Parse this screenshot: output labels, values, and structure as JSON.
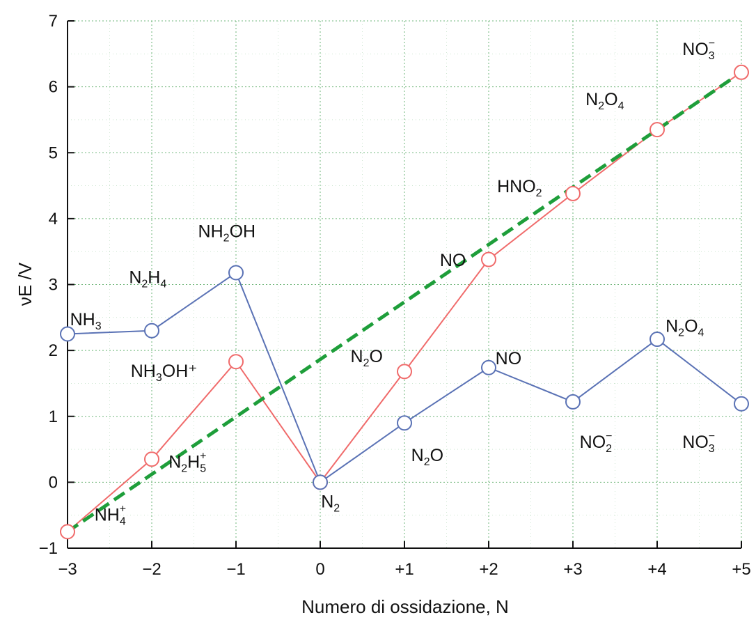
{
  "chart_data": {
    "type": "line",
    "xlabel": "Numero di ossidazione, N",
    "ylabel": "νE /V",
    "xlim": [
      -3,
      5
    ],
    "ylim": [
      -1,
      7
    ],
    "x_ticks": [
      -3,
      -2,
      -1,
      0,
      1,
      2,
      3,
      4,
      5
    ],
    "x_tick_labels": [
      "−3",
      "−2",
      "−1",
      "0",
      "+1",
      "+2",
      "+3",
      "+4",
      "+5"
    ],
    "y_ticks": [
      -1,
      0,
      1,
      2,
      3,
      4,
      5,
      6,
      7
    ],
    "y_tick_labels": [
      "−1",
      "0",
      "1",
      "2",
      "3",
      "4",
      "5",
      "6",
      "7"
    ],
    "grid": true,
    "colors": {
      "red_series": "#f06b6b",
      "blue_series": "#5a72b5",
      "dashed_line": "#1e9e3a",
      "grid": "#5fae6a"
    },
    "series": [
      {
        "color": "#f06b6b",
        "marker": "open-circle",
        "points": [
          {
            "x": -3,
            "y": -0.75
          },
          {
            "x": -2,
            "y": 0.35
          },
          {
            "x": -1,
            "y": 1.83
          },
          {
            "x": 0,
            "y": 0.0
          },
          {
            "x": 1,
            "y": 1.68
          },
          {
            "x": 2,
            "y": 3.38
          },
          {
            "x": 3,
            "y": 4.38
          },
          {
            "x": 4,
            "y": 5.35
          },
          {
            "x": 5,
            "y": 6.22
          }
        ]
      },
      {
        "color": "#5a72b5",
        "marker": "open-circle",
        "points": [
          {
            "x": -3,
            "y": 2.25
          },
          {
            "x": -2,
            "y": 2.3
          },
          {
            "x": -1,
            "y": 3.18
          },
          {
            "x": 0,
            "y": 0.0
          },
          {
            "x": 1,
            "y": 0.9
          },
          {
            "x": 2,
            "y": 1.74
          },
          {
            "x": 3,
            "y": 1.22
          },
          {
            "x": 4,
            "y": 2.17
          },
          {
            "x": 5,
            "y": 1.19
          }
        ]
      }
    ],
    "trend_line": {
      "color": "#1e9e3a",
      "style": "dashed",
      "from": {
        "x": -3,
        "y": -0.75
      },
      "to": {
        "x": 5,
        "y": 6.22
      }
    },
    "annotations": [
      {
        "text": "NH",
        "sub": "4",
        "sup": "+",
        "x": -2.68,
        "y": -0.58
      },
      {
        "text": "N",
        "sub": "2",
        "post": "H",
        "sub2": "5",
        "sup": "+",
        "x": -1.8,
        "y": 0.22
      },
      {
        "text": "NH",
        "sub": "3",
        "post": "OH⁺",
        "x": -2.25,
        "y": 1.6
      },
      {
        "text": "NH",
        "sub": "3",
        "x": -2.97,
        "y": 2.38
      },
      {
        "text": "N",
        "sub": "2",
        "post": "H",
        "sub2": "4",
        "x": -2.27,
        "y": 3.02
      },
      {
        "text": "NH",
        "sub": "2",
        "post": "OH",
        "x": -1.45,
        "y": 3.72
      },
      {
        "text": "N",
        "sub": "2",
        "x": 0.01,
        "y": -0.38
      },
      {
        "text": "N",
        "sub": "2",
        "post": "O",
        "x": 0.36,
        "y": 1.82
      },
      {
        "text": "N",
        "sub": "2",
        "post": "O",
        "x": 1.08,
        "y": 0.32
      },
      {
        "text": "NO",
        "x": 2.08,
        "y": 1.79
      },
      {
        "text": "NO",
        "x": 1.42,
        "y": 3.28
      },
      {
        "text": "HNO",
        "sub": "2",
        "x": 2.1,
        "y": 4.4
      },
      {
        "text": "N",
        "sub": "2",
        "post": "O",
        "sub2": "4",
        "x": 3.15,
        "y": 5.72
      },
      {
        "text": "NO",
        "sub": "3",
        "sup": "−",
        "x": 4.3,
        "y": 6.48
      },
      {
        "text": "NO",
        "sub": "2",
        "sup": "−",
        "x": 3.08,
        "y": 0.52
      },
      {
        "text": "NO",
        "sub": "3",
        "sup": "−",
        "x": 4.3,
        "y": 0.52
      },
      {
        "text": "N",
        "sub": "2",
        "post": "O",
        "sub2": "4",
        "x": 4.1,
        "y": 2.28
      }
    ]
  }
}
